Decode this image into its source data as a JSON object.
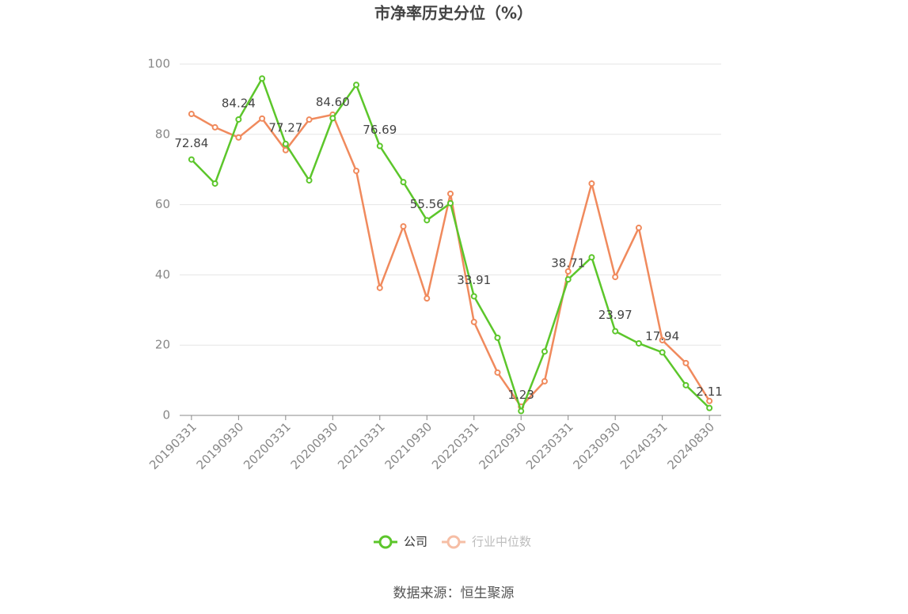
{
  "chart_data": {
    "type": "line",
    "title": "市净率历史分位（%）",
    "source": "数据来源：恒生聚源",
    "categories": [
      "20190331",
      null,
      "20190930",
      null,
      "20200331",
      null,
      "20200930",
      null,
      "20210331",
      null,
      "20210930",
      null,
      "20220331",
      null,
      "20220930",
      null,
      "20230331",
      null,
      "20230930",
      null,
      "20240331",
      null,
      "20240830"
    ],
    "ylim": [
      0,
      100
    ],
    "yticks": [
      0,
      20,
      40,
      60,
      80,
      100
    ],
    "grid": true,
    "legend": "bottom",
    "series": [
      {
        "name": "公司",
        "color": "#5cc62b",
        "values": [
          72.84,
          66.0,
          84.24,
          95.9,
          77.27,
          66.9,
          84.6,
          94.1,
          76.69,
          66.4,
          55.56,
          60.4,
          33.91,
          22.1,
          1.23,
          18.2,
          38.71,
          45.0,
          23.97,
          20.5,
          17.94,
          8.6,
          2.11
        ],
        "value_labels": [
          "72.84",
          null,
          "84.24",
          null,
          "77.27",
          null,
          "84.60",
          null,
          "76.69",
          null,
          "55.56",
          null,
          "33.91",
          null,
          "1.23",
          null,
          "38.71",
          null,
          "23.97",
          null,
          "17.94",
          null,
          "2.11"
        ]
      },
      {
        "name": "行业中位数",
        "color": "#f08a5d",
        "values": [
          85.8,
          82.0,
          79.1,
          84.5,
          75.5,
          84.2,
          85.6,
          69.6,
          36.3,
          53.8,
          33.3,
          63.1,
          26.6,
          12.2,
          2.5,
          9.7,
          41.0,
          66.0,
          39.4,
          53.4,
          21.4,
          14.9,
          4.1
        ]
      }
    ]
  }
}
